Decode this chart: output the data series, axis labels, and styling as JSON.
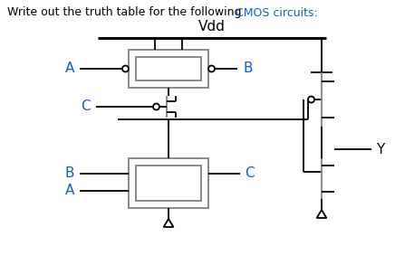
{
  "title_black": "Write out the truth table for the following ",
  "title_blue": "CMOS circuits:",
  "vdd_label": "Vdd",
  "label_A_top": "A",
  "label_B_top": "B",
  "label_C_mid": "C",
  "label_A_bot": "A",
  "label_B_bot": "B",
  "label_C_bot": "C",
  "label_Y": "Y",
  "black": "#000000",
  "blue": "#1060C0",
  "gray": "#808080",
  "bg": "#ffffff",
  "figsize": [
    4.36,
    2.93
  ],
  "dpi": 100
}
